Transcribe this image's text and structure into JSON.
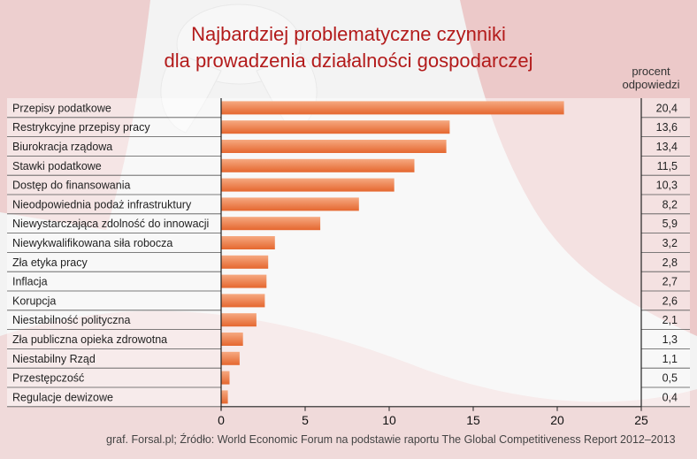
{
  "chart_data": {
    "type": "bar",
    "orientation": "horizontal",
    "title_lines": [
      "Najbardziej problematyczne czynniki",
      "dla prowadzenia działalności gospodarczej"
    ],
    "value_header": [
      "procent",
      "odpowiedzi"
    ],
    "categories": [
      "Przepisy podatkowe",
      "Restrykcyjne przepisy pracy",
      "Biurokracja rządowa",
      "Stawki podatkowe",
      "Dostęp do finansowania",
      "Nieodpowiednia podaż infrastruktury",
      "Niewystarczająca zdolność do innowacji",
      "Niewykwalifikowana siła robocza",
      "Zła etyka pracy",
      "Inflacja",
      "Korupcja",
      "Niestabilność polityczna",
      "Zła publiczna opieka zdrowotna",
      "Niestabilny Rząd",
      "Przestępczość",
      "Regulacje dewizowe"
    ],
    "values": [
      20.4,
      13.6,
      13.4,
      11.5,
      10.3,
      8.2,
      5.9,
      3.2,
      2.8,
      2.7,
      2.6,
      2.1,
      1.3,
      1.1,
      0.5,
      0.4
    ],
    "value_labels": [
      "20,4",
      "13,6",
      "13,4",
      "11,5",
      "10,3",
      "8,2",
      "5,9",
      "3,2",
      "2,8",
      "2,7",
      "2,6",
      "2,1",
      "1,3",
      "1,1",
      "0,5",
      "0,4"
    ],
    "x_ticks": [
      "0",
      "5",
      "10",
      "15",
      "20",
      "25"
    ],
    "x_tick_values": [
      0,
      5,
      10,
      15,
      20,
      25
    ],
    "xlim": [
      0,
      25
    ],
    "source": "graf. Forsal.pl; Źródło: World Economic Forum na podstawie raportu The Global Competitiveness Report 2012–2013",
    "colors": {
      "title": "#b31b1b",
      "bar_top": "#f6a981",
      "bar_bottom": "#e5672f",
      "grid": "#333333"
    }
  }
}
